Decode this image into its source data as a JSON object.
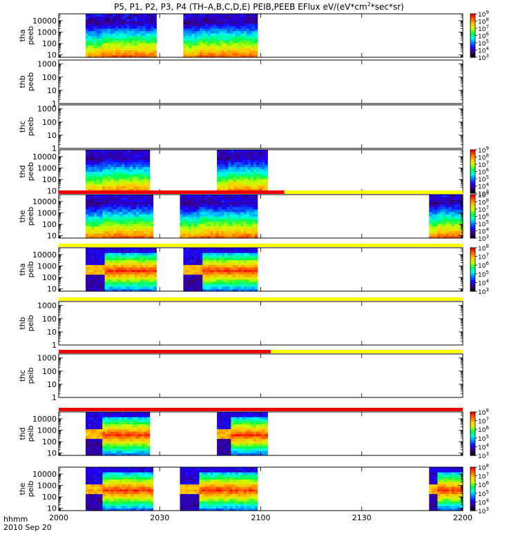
{
  "title_prefix": "P5, P1, P2, P3, P4 (TH–A,B,C,D,E) PEIB,PEEB EFlux eV/(eV*cm",
  "title_sup": "2",
  "title_suffix": "*sec*sr)",
  "colors": {
    "flag_red": "#ee0000",
    "flag_yellow": "#ffff00",
    "fill_missing": "#111111",
    "colormap": [
      "#000000",
      "#3a007a",
      "#1b00ff",
      "#007bff",
      "#00ffef",
      "#00ff47",
      "#c8ff00",
      "#ffcc00",
      "#ff6a00",
      "#ff0000"
    ]
  },
  "chart_data": {
    "type": "heatmap",
    "xlabel_line1": "hhmm",
    "xlabel_line2": "2010 Sep 20",
    "xlim": [
      0,
      120
    ],
    "x_ticks": [
      {
        "v": 0,
        "label": "2000"
      },
      {
        "v": 30,
        "label": "2030"
      },
      {
        "v": 60,
        "label": "2100"
      },
      {
        "v": 90,
        "label": "2130"
      },
      {
        "v": 120,
        "label": "2200"
      }
    ],
    "panels": [
      {
        "name": "tha peeb",
        "probe": "tha",
        "inst": "peeb",
        "y_ticks": [
          {
            "v": 1,
            "label": "10"
          },
          {
            "v": 2,
            "label": "100"
          },
          {
            "v": 3,
            "label": "1000"
          },
          {
            "v": 4,
            "label": "10000"
          }
        ],
        "ylog": [
          0.8,
          4.6
        ],
        "colorbar": {
          "min": 3,
          "max": 9,
          "labels": [
            "10",
            "10",
            "10",
            "10",
            "10",
            "10",
            "10"
          ],
          "exps": [
            "3",
            "4",
            "5",
            "6",
            "7",
            "8",
            "9"
          ]
        },
        "blocks": [
          {
            "x0": 8,
            "x1": 29,
            "profile": "e_burst"
          },
          {
            "x0": 37,
            "x1": 59,
            "profile": "e_burst"
          }
        ],
        "flag": null
      },
      {
        "name": "thb peeb",
        "probe": "thb",
        "inst": "peeb",
        "y_ticks": [
          {
            "v": 0,
            "label": "1"
          },
          {
            "v": 1,
            "label": "10"
          },
          {
            "v": 2,
            "label": "100"
          },
          {
            "v": 3,
            "label": "1000"
          }
        ],
        "ylog": [
          0,
          3.3
        ],
        "colorbar": null,
        "blocks": [],
        "flag": null
      },
      {
        "name": "thc peeb",
        "probe": "thc",
        "inst": "peeb",
        "y_ticks": [
          {
            "v": 0,
            "label": "1"
          },
          {
            "v": 1,
            "label": "10"
          },
          {
            "v": 2,
            "label": "100"
          },
          {
            "v": 3,
            "label": "1000"
          }
        ],
        "ylog": [
          0,
          3.3
        ],
        "colorbar": null,
        "blocks": [],
        "flag": null
      },
      {
        "name": "thd peeb",
        "probe": "thd",
        "inst": "peeb",
        "y_ticks": [
          {
            "v": 1,
            "label": "10"
          },
          {
            "v": 2,
            "label": "100"
          },
          {
            "v": 3,
            "label": "1000"
          },
          {
            "v": 4,
            "label": "10000"
          }
        ],
        "ylog": [
          0.8,
          4.6
        ],
        "colorbar": {
          "min": 3,
          "max": 9,
          "labels": [
            "10",
            "10",
            "10",
            "10",
            "10",
            "10",
            "10"
          ],
          "exps": [
            "3",
            "4",
            "5",
            "6",
            "7",
            "8",
            "9"
          ]
        },
        "blocks": [
          {
            "x0": 8,
            "x1": 27,
            "profile": "e_burst"
          },
          {
            "x0": 47,
            "x1": 62,
            "profile": "e_burst"
          }
        ],
        "flag": null
      },
      {
        "name": "the peeb",
        "probe": "the",
        "inst": "peeb",
        "y_ticks": [
          {
            "v": 1,
            "label": "10"
          },
          {
            "v": 2,
            "label": "100"
          },
          {
            "v": 3,
            "label": "1000"
          },
          {
            "v": 4,
            "label": "10000"
          }
        ],
        "ylog": [
          0.8,
          4.6
        ],
        "colorbar": {
          "min": 3,
          "max": 9,
          "labels": [
            "10",
            "10",
            "10",
            "10",
            "10",
            "10",
            "10"
          ],
          "exps": [
            "3",
            "4",
            "5",
            "6",
            "7",
            "8",
            "9"
          ]
        },
        "blocks": [
          {
            "x0": 8,
            "x1": 28,
            "profile": "e_burst"
          },
          {
            "x0": 36,
            "x1": 59,
            "profile": "e_burst"
          },
          {
            "x0": 110,
            "x1": 120,
            "profile": "e_burst"
          }
        ],
        "flag": {
          "red_until": 67
        }
      },
      {
        "name": "tha peib",
        "probe": "tha",
        "inst": "peib",
        "y_ticks": [
          {
            "v": 1,
            "label": "10"
          },
          {
            "v": 2,
            "label": "100"
          },
          {
            "v": 3,
            "label": "1000"
          },
          {
            "v": 4,
            "label": "10000"
          }
        ],
        "ylog": [
          0.8,
          4.6
        ],
        "colorbar": {
          "min": 3,
          "max": 8,
          "labels": [
            "10",
            "10",
            "10",
            "10",
            "10",
            "10"
          ],
          "exps": [
            "3",
            "4",
            "5",
            "6",
            "7",
            "8"
          ]
        },
        "blocks": [
          {
            "x0": 8,
            "x1": 29,
            "profile": "i_burst"
          },
          {
            "x0": 37,
            "x1": 59,
            "profile": "i_burst"
          }
        ],
        "flag": {
          "red_until": 0
        }
      },
      {
        "name": "thb peib",
        "probe": "thb",
        "inst": "peib",
        "y_ticks": [
          {
            "v": 0,
            "label": "1"
          },
          {
            "v": 1,
            "label": "10"
          },
          {
            "v": 2,
            "label": "100"
          },
          {
            "v": 3,
            "label": "1000"
          }
        ],
        "ylog": [
          0,
          3.3
        ],
        "colorbar": null,
        "blocks": [],
        "flag": {
          "red_until": 0
        }
      },
      {
        "name": "thc peib",
        "probe": "thc",
        "inst": "peib",
        "y_ticks": [
          {
            "v": 0,
            "label": "1"
          },
          {
            "v": 1,
            "label": "10"
          },
          {
            "v": 2,
            "label": "100"
          },
          {
            "v": 3,
            "label": "1000"
          }
        ],
        "ylog": [
          0,
          3.3
        ],
        "colorbar": null,
        "blocks": [],
        "flag": {
          "red_until": 63
        }
      },
      {
        "name": "thd peib",
        "probe": "thd",
        "inst": "peib",
        "y_ticks": [
          {
            "v": 1,
            "label": "10"
          },
          {
            "v": 2,
            "label": "100"
          },
          {
            "v": 3,
            "label": "1000"
          },
          {
            "v": 4,
            "label": "10000"
          }
        ],
        "ylog": [
          0.8,
          4.6
        ],
        "colorbar": {
          "min": 3,
          "max": 8,
          "labels": [
            "10",
            "10",
            "10",
            "10",
            "10",
            "10"
          ],
          "exps": [
            "3",
            "4",
            "5",
            "6",
            "7",
            "8"
          ]
        },
        "blocks": [
          {
            "x0": 8,
            "x1": 27,
            "profile": "i_burst"
          },
          {
            "x0": 47,
            "x1": 62,
            "profile": "i_burst"
          }
        ],
        "flag": {
          "red_until": 120
        }
      },
      {
        "name": "the peib",
        "probe": "the",
        "inst": "peib",
        "y_ticks": [
          {
            "v": 1,
            "label": "10"
          },
          {
            "v": 2,
            "label": "100"
          },
          {
            "v": 3,
            "label": "1000"
          },
          {
            "v": 4,
            "label": "10000"
          }
        ],
        "ylog": [
          0.8,
          4.6
        ],
        "colorbar": {
          "min": 3,
          "max": 8,
          "labels": [
            "10",
            "10",
            "10",
            "10",
            "10",
            "10"
          ],
          "exps": [
            "3",
            "4",
            "5",
            "6",
            "7",
            "8"
          ]
        },
        "blocks": [
          {
            "x0": 8,
            "x1": 28,
            "profile": "i_burst"
          },
          {
            "x0": 36,
            "x1": 59,
            "profile": "i_burst"
          },
          {
            "x0": 110,
            "x1": 120,
            "profile": "i_burst"
          }
        ],
        "flag": null
      }
    ]
  }
}
